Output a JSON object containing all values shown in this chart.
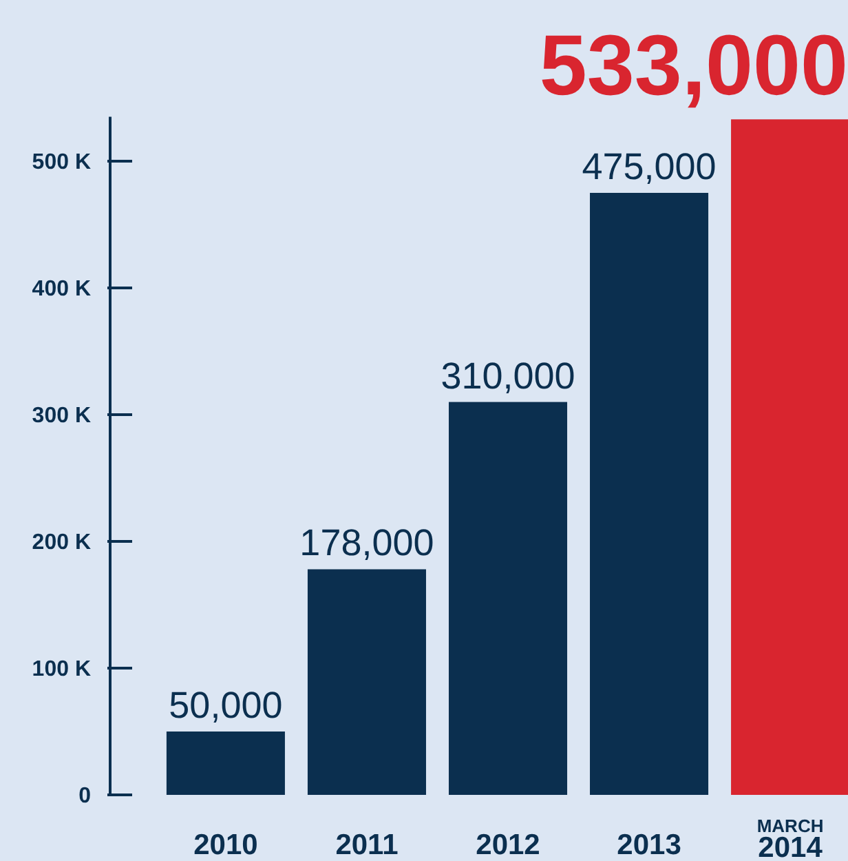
{
  "chart_data": {
    "type": "bar",
    "categories": [
      "2010",
      "2011",
      "2012",
      "2013",
      "MARCH 2014"
    ],
    "values": [
      50000,
      178000,
      310000,
      475000,
      533000
    ],
    "colors": [
      "#0b2f4f",
      "#0b2f4f",
      "#0b2f4f",
      "#0b2f4f",
      "#d9252f"
    ],
    "value_labels": [
      "50,000",
      "178,000",
      "310,000",
      "475,000",
      "533,000"
    ],
    "ylim": [
      0,
      535000
    ],
    "yticks": [
      0,
      {
        "value": 100000,
        "label": "100 K"
      },
      {
        "value": 200000,
        "label": "200 K"
      },
      {
        "value": 300000,
        "label": "300 K"
      },
      {
        "value": 400000,
        "label": "400 K"
      },
      {
        "value": 500000,
        "label": "500 K"
      }
    ],
    "grid": false
  }
}
